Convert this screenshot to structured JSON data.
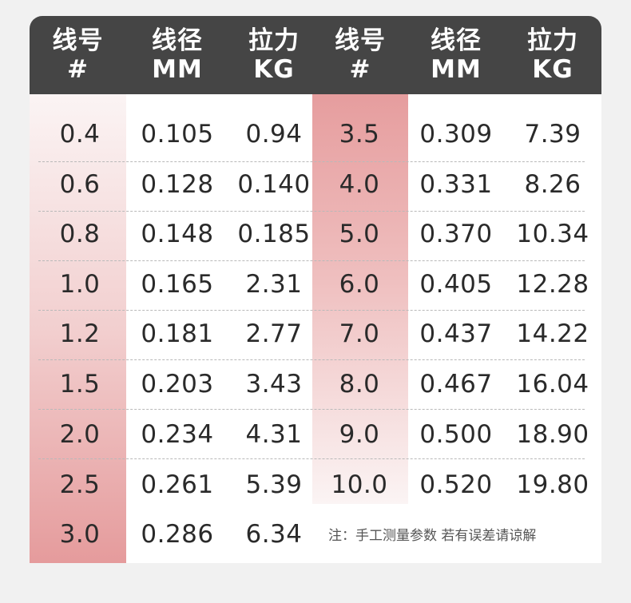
{
  "header": {
    "col1": {
      "line1": "线号",
      "line2": "#"
    },
    "col2": {
      "line1": "线径",
      "line2": "MM"
    },
    "col3": {
      "line1": "拉力",
      "line2": "KG"
    },
    "col4": {
      "line1": "线号",
      "line2": "#"
    },
    "col5": {
      "line1": "线径",
      "line2": "MM"
    },
    "col6": {
      "line1": "拉力",
      "line2": "KG"
    }
  },
  "left_table": {
    "rows": [
      {
        "size": "0.4",
        "diameter": "0.105",
        "tension": "0.94"
      },
      {
        "size": "0.6",
        "diameter": "0.128",
        "tension": "0.140"
      },
      {
        "size": "0.8",
        "diameter": "0.148",
        "tension": "0.185"
      },
      {
        "size": "1.0",
        "diameter": "0.165",
        "tension": "2.31"
      },
      {
        "size": "1.2",
        "diameter": "0.181",
        "tension": "2.77"
      },
      {
        "size": "1.5",
        "diameter": "0.203",
        "tension": "3.43"
      },
      {
        "size": "2.0",
        "diameter": "0.234",
        "tension": "4.31"
      },
      {
        "size": "2.5",
        "diameter": "0.261",
        "tension": "5.39"
      },
      {
        "size": "3.0",
        "diameter": "0.286",
        "tension": "6.34"
      }
    ]
  },
  "right_table": {
    "rows": [
      {
        "size": "3.5",
        "diameter": "0.309",
        "tension": "7.39"
      },
      {
        "size": "4.0",
        "diameter": "0.331",
        "tension": "8.26"
      },
      {
        "size": "5.0",
        "diameter": "0.370",
        "tension": "10.34"
      },
      {
        "size": "6.0",
        "diameter": "0.405",
        "tension": "12.28"
      },
      {
        "size": "7.0",
        "diameter": "0.437",
        "tension": "14.22"
      },
      {
        "size": "8.0",
        "diameter": "0.467",
        "tension": "16.04"
      },
      {
        "size": "9.0",
        "diameter": "0.500",
        "tension": "18.90"
      },
      {
        "size": "10.0",
        "diameter": "0.520",
        "tension": "19.80"
      }
    ]
  },
  "note": "注：手工测量参数 若有误差请谅解",
  "colors": {
    "header_bg": "#454545",
    "highlight_pink": "#e59b9c",
    "text": "#2a2a2a"
  }
}
